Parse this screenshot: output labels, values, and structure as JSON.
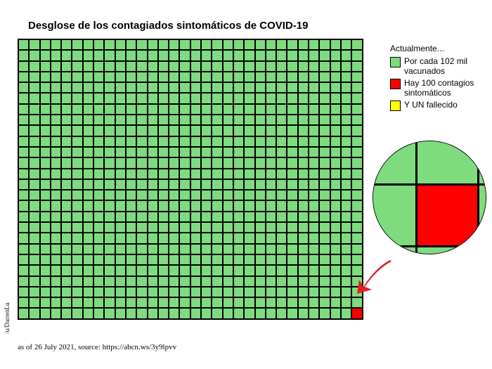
{
  "title": "Desglose de los contagiados sintomáticos de COVID-19",
  "title_fontsize": 15,
  "grid": {
    "rows": 26,
    "cols": 32,
    "cell_w": 15.3,
    "cell_h": 15.3,
    "fill_color": "#7edb7e",
    "highlight_color": "#ff0000",
    "border_color": "#000000",
    "highlight_row": 25,
    "highlight_col": 31
  },
  "legend": {
    "title": "Actualmente...",
    "items": [
      {
        "color": "#7edb7e",
        "label": "Por cada 102 mil vacunados"
      },
      {
        "color": "#ff0000",
        "label": "Hay 100 contagios sintomáticos"
      },
      {
        "color": "#ffff00",
        "label": "Y UN fallecido"
      }
    ]
  },
  "zoom": {
    "bg_color": "#7edb7e",
    "highlight_color": "#ff0000",
    "tiny_color": "#ffff00",
    "line_color": "#000000",
    "line_width": 3
  },
  "arrow_color": "#e02020",
  "footnote": "as of 26 July 2021, source: https://abcn.ws/3y9lpvv",
  "credit": "/u/DarrenLu",
  "background_color": "#ffffff"
}
